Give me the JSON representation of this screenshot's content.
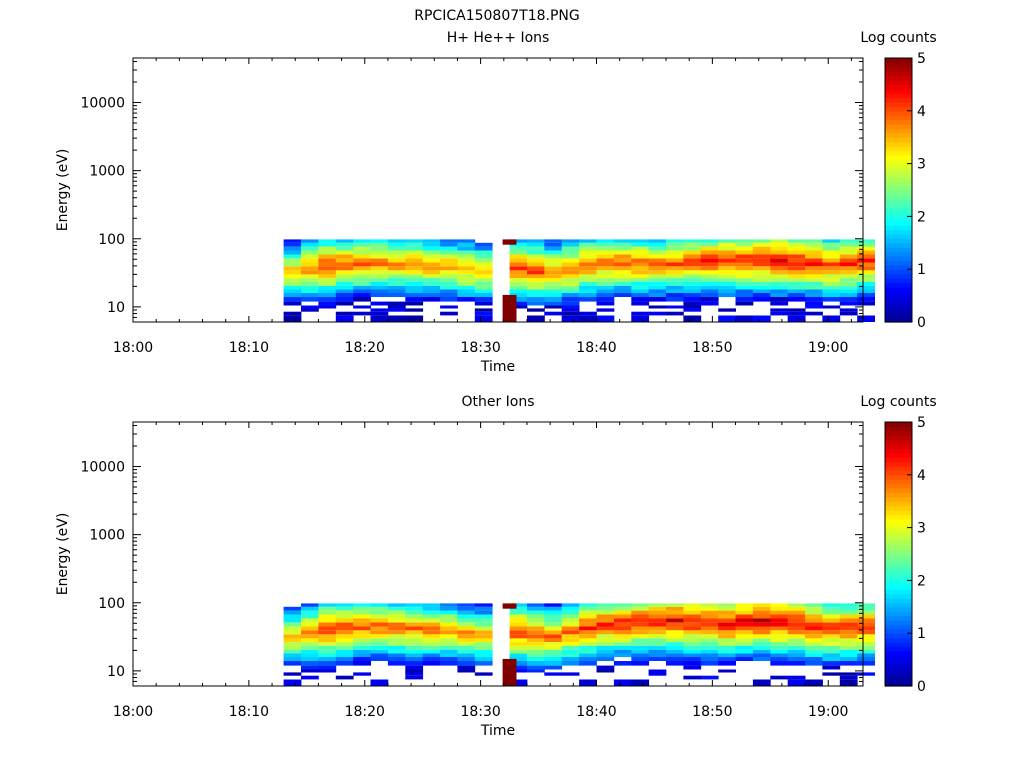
{
  "figure": {
    "title": "RPCICA150807T18.PNG"
  },
  "colors": {
    "background": "#ffffff",
    "axes": "#000000",
    "colormap": [
      "#00008f",
      "#0000ff",
      "#0080ff",
      "#00ffff",
      "#80ff80",
      "#ffff00",
      "#ff8000",
      "#ff0000",
      "#800000"
    ]
  },
  "chart_data": [
    {
      "type": "heatmap",
      "title": "H+ He++ Ions",
      "xlabel": "Time",
      "ylabel": "Energy (eV)",
      "yscale": "log",
      "ylim": [
        6,
        45000
      ],
      "xlim": [
        "18:00",
        "19:03"
      ],
      "xticks": [
        "18:00",
        "18:10",
        "18:20",
        "18:30",
        "18:40",
        "18:50",
        "19:00"
      ],
      "yticks": [
        "10",
        "100",
        "1000",
        "10000"
      ],
      "colorbar": {
        "label": "Log counts",
        "range": [
          0,
          5
        ],
        "ticks": [
          "0",
          "1",
          "2",
          "3",
          "4",
          "5"
        ]
      },
      "data_start": "18:13",
      "data_gap": [
        "18:31.5",
        "18:32"
      ],
      "data_end": "19:03",
      "energy_bins_eV": [
        7,
        8,
        9,
        10,
        11,
        13,
        15,
        17,
        19,
        22,
        25,
        28,
        32,
        37,
        42,
        48,
        55,
        63,
        72,
        82,
        93
      ],
      "peak_log_counts_by_minute": [
        {
          "t": "18:13",
          "peak_eV": 32,
          "log_counts": 3.6
        },
        {
          "t": "18:16",
          "peak_eV": 40,
          "log_counts": 4.2
        },
        {
          "t": "18:20",
          "peak_eV": 45,
          "log_counts": 3.9
        },
        {
          "t": "18:25",
          "peak_eV": 40,
          "log_counts": 3.8
        },
        {
          "t": "18:30",
          "peak_eV": 32,
          "log_counts": 3.7
        },
        {
          "t": "18:33",
          "peak_eV": 38,
          "log_counts": 4.3
        },
        {
          "t": "18:35",
          "peak_eV": 30,
          "log_counts": 3.9
        },
        {
          "t": "18:40",
          "peak_eV": 45,
          "log_counts": 4.1
        },
        {
          "t": "18:45",
          "peak_eV": 42,
          "log_counts": 4.0
        },
        {
          "t": "18:50",
          "peak_eV": 48,
          "log_counts": 4.3
        },
        {
          "t": "18:55",
          "peak_eV": 48,
          "log_counts": 4.4
        },
        {
          "t": "19:00",
          "peak_eV": 40,
          "log_counts": 4.2
        },
        {
          "t": "19:03",
          "peak_eV": 48,
          "log_counts": 4.3
        }
      ],
      "saturated_column": {
        "t": "18:32.5",
        "eV_range": [
          6,
          15
        ],
        "log_counts": 5
      }
    },
    {
      "type": "heatmap",
      "title": "Other Ions",
      "xlabel": "Time",
      "ylabel": "Energy (eV)",
      "yscale": "log",
      "ylim": [
        6,
        45000
      ],
      "xlim": [
        "18:00",
        "19:03"
      ],
      "xticks": [
        "18:00",
        "18:10",
        "18:20",
        "18:30",
        "18:40",
        "18:50",
        "19:00"
      ],
      "yticks": [
        "10",
        "100",
        "1000",
        "10000"
      ],
      "colorbar": {
        "label": "Log counts",
        "range": [
          0,
          5
        ],
        "ticks": [
          "0",
          "1",
          "2",
          "3",
          "4",
          "5"
        ]
      },
      "data_start": "18:13",
      "data_gap": [
        "18:31.5",
        "18:32"
      ],
      "data_end": "19:03",
      "energy_bins_eV": [
        7,
        8,
        9,
        10,
        11,
        13,
        15,
        17,
        19,
        22,
        25,
        28,
        32,
        37,
        42,
        48,
        55,
        63,
        72,
        82,
        93
      ],
      "peak_log_counts_by_minute": [
        {
          "t": "18:13",
          "peak_eV": 32,
          "log_counts": 3.6
        },
        {
          "t": "18:16",
          "peak_eV": 40,
          "log_counts": 4.2
        },
        {
          "t": "18:20",
          "peak_eV": 45,
          "log_counts": 4.0
        },
        {
          "t": "18:25",
          "peak_eV": 40,
          "log_counts": 3.9
        },
        {
          "t": "18:30",
          "peak_eV": 32,
          "log_counts": 3.6
        },
        {
          "t": "18:33",
          "peak_eV": 38,
          "log_counts": 4.3
        },
        {
          "t": "18:35",
          "peak_eV": 30,
          "log_counts": 3.9
        },
        {
          "t": "18:40",
          "peak_eV": 48,
          "log_counts": 4.2
        },
        {
          "t": "18:46",
          "peak_eV": 55,
          "log_counts": 4.5
        },
        {
          "t": "18:50",
          "peak_eV": 48,
          "log_counts": 4.4
        },
        {
          "t": "18:54",
          "peak_eV": 55,
          "log_counts": 4.6
        },
        {
          "t": "19:00",
          "peak_eV": 40,
          "log_counts": 4.2
        },
        {
          "t": "19:03",
          "peak_eV": 45,
          "log_counts": 4.3
        }
      ],
      "saturated_column": {
        "t": "18:32.5",
        "eV_range": [
          6,
          15
        ],
        "log_counts": 5
      }
    }
  ]
}
